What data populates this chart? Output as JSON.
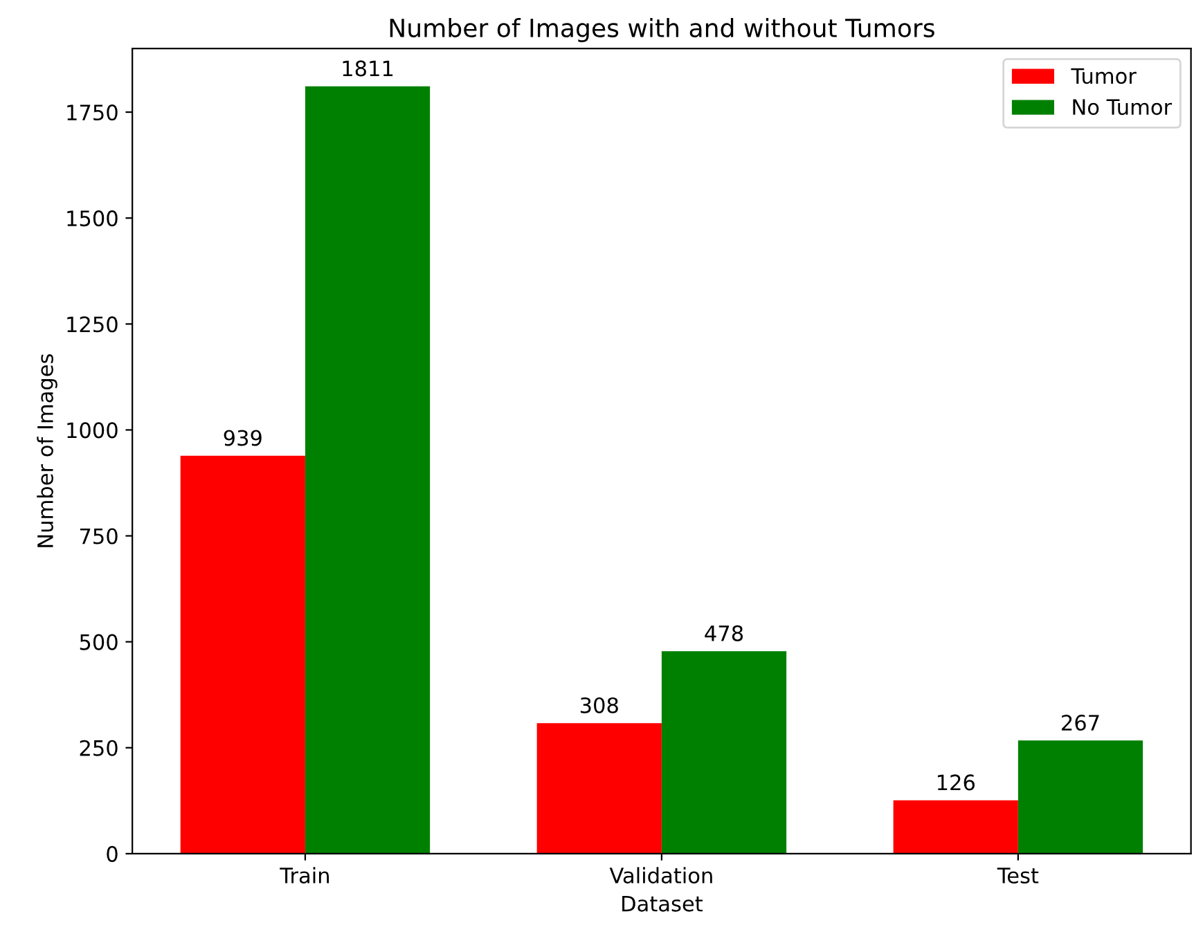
{
  "chart_data": {
    "type": "bar",
    "title": "Number of Images with and without Tumors",
    "xlabel": "Dataset",
    "ylabel": "Number of Images",
    "categories": [
      "Train",
      "Validation",
      "Test"
    ],
    "series": [
      {
        "name": "Tumor",
        "color": "#ff0000",
        "values": [
          939,
          308,
          126
        ]
      },
      {
        "name": "No Tumor",
        "color": "#008000",
        "values": [
          1811,
          478,
          267
        ]
      }
    ],
    "ylim": [
      0,
      1900
    ],
    "yticks": [
      0,
      250,
      500,
      750,
      1000,
      1250,
      1500,
      1750
    ],
    "data_labels": true,
    "legend": "top right",
    "grid": false
  }
}
